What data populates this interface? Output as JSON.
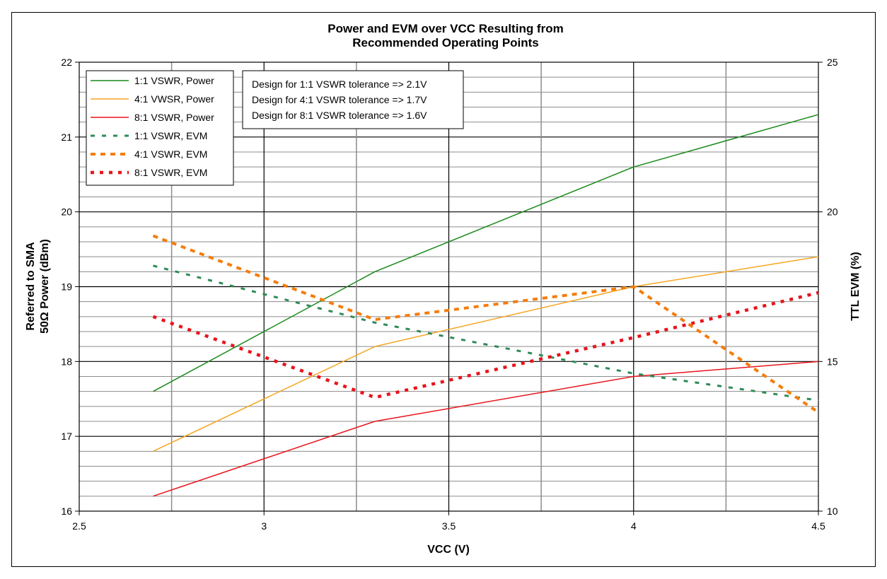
{
  "chart_data": {
    "type": "line",
    "title_lines": [
      "Power and EVM over VCC Resulting from",
      "Recommended Operating Points"
    ],
    "xlabel": "VCC (V)",
    "ylabel_left_lines": [
      "Referred to SMA",
      "50Ω Power (dBm)"
    ],
    "ylabel_right": "TTL EVM (%)",
    "xlim": [
      2.5,
      4.5
    ],
    "ylim_left": [
      16,
      22
    ],
    "ylim_right": [
      10,
      25
    ],
    "x_ticks": [
      "2.5",
      "3",
      "3.5",
      "4",
      "4.5"
    ],
    "y_left_ticks": [
      "16",
      "17",
      "18",
      "19",
      "20",
      "21",
      "22"
    ],
    "y_right_ticks": [
      "10",
      "15",
      "20",
      "25"
    ],
    "grid": true,
    "legend_position": "top-left",
    "series": [
      {
        "name": "1:1 VSWR, Power",
        "axis": "left",
        "style": "solid",
        "color": "#1a8a1a",
        "x": [
          2.7,
          3.3,
          4.0,
          4.5
        ],
        "values": [
          17.6,
          19.2,
          20.6,
          21.3
        ]
      },
      {
        "name": "4:1 VWSR, Power",
        "axis": "left",
        "style": "solid",
        "color": "#f5a623",
        "x": [
          2.7,
          3.3,
          4.0,
          4.5
        ],
        "values": [
          16.8,
          18.2,
          19.0,
          19.4
        ]
      },
      {
        "name": "8:1 VSWR, Power",
        "axis": "left",
        "style": "solid",
        "color": "#e8141c",
        "x": [
          2.7,
          3.3,
          4.0,
          4.5
        ],
        "values": [
          16.2,
          17.2,
          17.8,
          18.0
        ]
      },
      {
        "name": "1:1 VSWR, EVM",
        "axis": "right",
        "style": "dash-fine",
        "color": "#2e8b57",
        "x": [
          2.7,
          3.3,
          4.0,
          4.5
        ],
        "values": [
          18.2,
          16.3,
          14.6,
          13.7
        ]
      },
      {
        "name": "4:1 VSWR, EVM",
        "axis": "right",
        "style": "dash-thick",
        "color": "#f57c0a",
        "x": [
          2.7,
          3.3,
          4.0,
          4.5
        ],
        "values": [
          19.2,
          16.4,
          17.5,
          13.3
        ]
      },
      {
        "name": "8:1 VSWR, EVM",
        "axis": "right",
        "style": "dot-thick",
        "color": "#e8141c",
        "x": [
          2.7,
          3.3,
          4.0,
          4.5
        ],
        "values": [
          16.5,
          13.8,
          15.8,
          17.3
        ]
      }
    ],
    "annotation_lines": [
      "Design for 1:1 VSWR tolerance => 2.1V",
      "Design for 4:1 VSWR tolerance => 1.7V",
      "Design for 8:1 VSWR tolerance => 1.6V"
    ]
  }
}
